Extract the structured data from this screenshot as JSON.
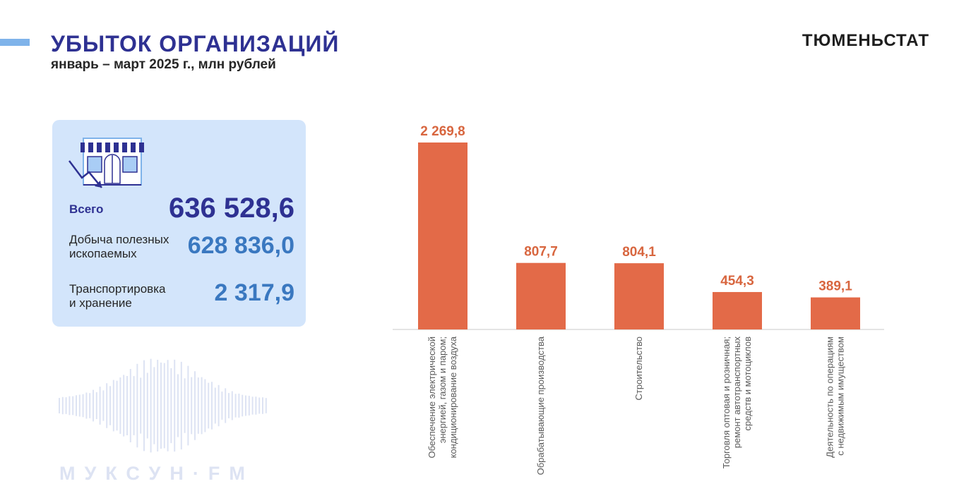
{
  "header": {
    "title": "УБЫТОК ОРГАНИЗАЦИЙ",
    "subtitle": "январь – март 2025 г., млн рублей",
    "brand": "ТЮМЕНЬСТАТ"
  },
  "summary": {
    "total": {
      "label": "Всего",
      "value": "636 528,6"
    },
    "mining": {
      "label_line1": "Добыча полезных",
      "label_line2": "ископаемых",
      "value": "628 836,0"
    },
    "transport": {
      "label_line1": "Транспортировка",
      "label_line2": "и хранение",
      "value": "2 317,9"
    }
  },
  "watermark": {
    "text": "МУКСУН·FM"
  },
  "colors": {
    "bar": "#e36a48",
    "label": "#d8663f",
    "title": "#2e3192",
    "card_bg": "#d3e5fb",
    "accent": "#7fb3ea"
  },
  "chart_data": {
    "type": "bar",
    "title": "",
    "xlabel": "",
    "ylabel": "",
    "grid": false,
    "ylim": [
      0,
      2400
    ],
    "categories": [
      [
        "Обеспечение электрической",
        "энергией, газом и паром;",
        "кондиционирование воздуха"
      ],
      [
        "Обрабатывающие производства"
      ],
      [
        "Строительство"
      ],
      [
        "Торговля оптовая и розничная;",
        "ремонт автотранспортных",
        "средств и мотоциклов"
      ],
      [
        "Деятельность по операциям",
        "с недвижимым имуществом"
      ]
    ],
    "values": [
      2269.8,
      807.7,
      804.1,
      454.3,
      389.1
    ],
    "value_labels": [
      "2 269,8",
      "807,7",
      "804,1",
      "454,3",
      "389,1"
    ]
  }
}
